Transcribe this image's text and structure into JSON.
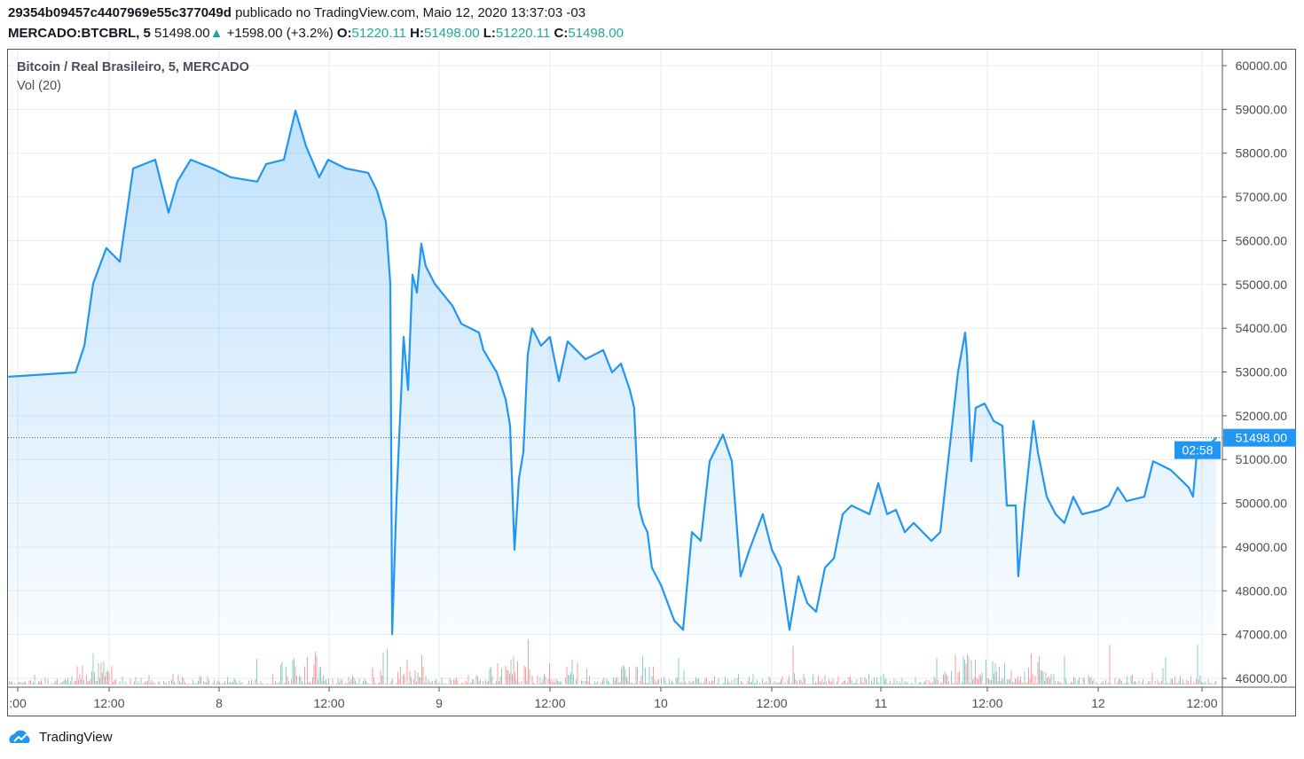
{
  "header": {
    "author": "29354b09457c4407969e55c377049d",
    "published": "publicado no TradingView.com, Maio 12, 2020 13:37:03 -03",
    "symbol": "MERCADO:BTCBRL, 5",
    "last": "51498.00",
    "change": "+1598.00 (+3.2%)",
    "o_label": "O:",
    "o": "51220.11",
    "h_label": "H:",
    "h": "51498.00",
    "l_label": "L:",
    "l": "51220.11",
    "c_label": "C:",
    "c": "51498.00"
  },
  "legend": {
    "title": "Bitcoin / Real Brasileiro, 5, MERCADO",
    "volume": "Vol (20)"
  },
  "footer": {
    "brand": "TradingView"
  },
  "colors": {
    "line": "#2196f3",
    "up": "#26a69a",
    "down": "#ef5350",
    "grid": "#e6edf4"
  },
  "chart_data": {
    "type": "area",
    "title": "Bitcoin / Real Brasileiro, 5, MERCADO",
    "ylim": [
      45800,
      60400
    ],
    "y_ticks": [
      "60000.00",
      "59000.00",
      "58000.00",
      "57000.00",
      "56000.00",
      "55000.00",
      "54000.00",
      "53000.00",
      "52000.00",
      "51000.00",
      "50000.00",
      "49000.00",
      "48000.00",
      "47000.00",
      "46000.00"
    ],
    "x_ticks": [
      ":00",
      "12:00",
      "8",
      "12:00",
      "9",
      "12:00",
      "10",
      "12:00",
      "11",
      "12:00",
      "12",
      "12:00"
    ],
    "last_price_label": "51498.00",
    "countdown_label": "02:58",
    "grid": true,
    "series": [
      {
        "values": [
          [
            "2020-05-07T01:00",
            52890
          ],
          [
            "2020-05-07T08:20",
            52990
          ],
          [
            "2020-05-07T09:18",
            53600
          ],
          [
            "2020-05-07T10:15",
            55020
          ],
          [
            "2020-05-07T11:42",
            55830
          ],
          [
            "2020-05-07T13:10",
            55520
          ],
          [
            "2020-05-07T14:37",
            57650
          ],
          [
            "2020-05-07T17:02",
            57850
          ],
          [
            "2020-05-07T18:29",
            56640
          ],
          [
            "2020-05-07T19:27",
            57350
          ],
          [
            "2020-05-07T20:54",
            57850
          ],
          [
            "2020-05-07T23:19",
            57650
          ],
          [
            "2020-05-08T01:16",
            57450
          ],
          [
            "2020-05-08T04:10",
            57350
          ],
          [
            "2020-05-08T05:08",
            57750
          ],
          [
            "2020-05-08T07:04",
            57850
          ],
          [
            "2020-05-08T08:20",
            58970
          ],
          [
            "2020-05-08T09:29",
            58160
          ],
          [
            "2020-05-08T10:56",
            57450
          ],
          [
            "2020-05-08T11:54",
            57850
          ],
          [
            "2020-05-08T13:50",
            57650
          ],
          [
            "2020-05-08T16:16",
            57550
          ],
          [
            "2020-05-08T17:14",
            57140
          ],
          [
            "2020-05-08T18:12",
            56430
          ],
          [
            "2020-05-08T18:41",
            55020
          ],
          [
            "2020-05-08T18:53",
            47010
          ],
          [
            "2020-05-08T19:22",
            50150
          ],
          [
            "2020-05-08T20:08",
            53800
          ],
          [
            "2020-05-08T20:37",
            52590
          ],
          [
            "2020-05-08T21:06",
            55220
          ],
          [
            "2020-05-08T21:35",
            54810
          ],
          [
            "2020-05-08T22:04",
            55930
          ],
          [
            "2020-05-08T22:33",
            55420
          ],
          [
            "2020-05-08T23:31",
            55020
          ],
          [
            "2020-05-09T01:28",
            54510
          ],
          [
            "2020-05-09T02:26",
            54100
          ],
          [
            "2020-05-09T04:22",
            53900
          ],
          [
            "2020-05-09T04:51",
            53500
          ],
          [
            "2020-05-09T06:18",
            52990
          ],
          [
            "2020-05-09T07:16",
            52380
          ],
          [
            "2020-05-09T07:45",
            51770
          ],
          [
            "2020-05-09T08:14",
            48940
          ],
          [
            "2020-05-09T08:43",
            50560
          ],
          [
            "2020-05-09T09:12",
            51170
          ],
          [
            "2020-05-09T09:41",
            53400
          ],
          [
            "2020-05-09T10:10",
            54000
          ],
          [
            "2020-05-09T11:08",
            53600
          ],
          [
            "2020-05-09T12:06",
            53800
          ],
          [
            "2020-05-09T13:05",
            52790
          ],
          [
            "2020-05-09T14:02",
            53700
          ],
          [
            "2020-05-09T15:59",
            53290
          ],
          [
            "2020-05-09T17:55",
            53500
          ],
          [
            "2020-05-09T18:53",
            52990
          ],
          [
            "2020-05-09T19:51",
            53190
          ],
          [
            "2020-05-09T20:49",
            52590
          ],
          [
            "2020-05-09T21:18",
            52180
          ],
          [
            "2020-05-09T21:47",
            49950
          ],
          [
            "2020-05-09T22:16",
            49550
          ],
          [
            "2020-05-09T22:45",
            49340
          ],
          [
            "2020-05-09T23:14",
            48530
          ],
          [
            "2020-05-10T00:13",
            48130
          ],
          [
            "2020-05-10T01:40",
            47320
          ],
          [
            "2020-05-10T02:38",
            47110
          ],
          [
            "2020-05-10T03:36",
            49340
          ],
          [
            "2020-05-10T04:34",
            49140
          ],
          [
            "2020-05-10T05:32",
            50960
          ],
          [
            "2020-05-10T06:59",
            51570
          ],
          [
            "2020-05-10T07:57",
            50960
          ],
          [
            "2020-05-10T08:55",
            48330
          ],
          [
            "2020-05-10T09:53",
            48940
          ],
          [
            "2020-05-10T11:20",
            49750
          ],
          [
            "2020-05-10T12:19",
            48940
          ],
          [
            "2020-05-10T13:17",
            48530
          ],
          [
            "2020-05-10T14:15",
            47110
          ],
          [
            "2020-05-10T15:13",
            48330
          ],
          [
            "2020-05-10T16:11",
            47720
          ],
          [
            "2020-05-10T17:09",
            47520
          ],
          [
            "2020-05-10T18:07",
            48530
          ],
          [
            "2020-05-10T19:05",
            48740
          ],
          [
            "2020-05-10T20:03",
            49750
          ],
          [
            "2020-05-10T21:01",
            49950
          ],
          [
            "2020-05-10T22:58",
            49750
          ],
          [
            "2020-05-10T23:56",
            50460
          ],
          [
            "2020-05-11T00:54",
            49750
          ],
          [
            "2020-05-11T01:52",
            49850
          ],
          [
            "2020-05-11T02:50",
            49340
          ],
          [
            "2020-05-11T03:48",
            49550
          ],
          [
            "2020-05-11T05:44",
            49140
          ],
          [
            "2020-05-11T06:42",
            49340
          ],
          [
            "2020-05-11T07:40",
            51170
          ],
          [
            "2020-05-11T08:38",
            52990
          ],
          [
            "2020-05-11T09:25",
            53900
          ],
          [
            "2020-05-11T09:37",
            53400
          ],
          [
            "2020-05-11T10:05",
            50960
          ],
          [
            "2020-05-11T10:34",
            52180
          ],
          [
            "2020-05-11T11:32",
            52280
          ],
          [
            "2020-05-11T12:31",
            51880
          ],
          [
            "2020-05-11T13:29",
            51770
          ],
          [
            "2020-05-11T13:58",
            49950
          ],
          [
            "2020-05-11T14:56",
            49950
          ],
          [
            "2020-05-11T15:13",
            48330
          ],
          [
            "2020-05-11T15:54",
            49950
          ],
          [
            "2020-05-11T16:52",
            51880
          ],
          [
            "2020-05-11T17:21",
            51170
          ],
          [
            "2020-05-11T18:19",
            50150
          ],
          [
            "2020-05-11T19:17",
            49750
          ],
          [
            "2020-05-11T20:15",
            49550
          ],
          [
            "2020-05-11T21:13",
            50150
          ],
          [
            "2020-05-11T22:11",
            49750
          ],
          [
            "2020-05-12T00:08",
            49850
          ],
          [
            "2020-05-12T01:06",
            49950
          ],
          [
            "2020-05-12T02:04",
            50360
          ],
          [
            "2020-05-12T03:02",
            50050
          ],
          [
            "2020-05-12T04:58",
            50150
          ],
          [
            "2020-05-12T05:56",
            50960
          ],
          [
            "2020-05-12T07:52",
            50760
          ],
          [
            "2020-05-12T09:49",
            50360
          ],
          [
            "2020-05-12T10:17",
            50150
          ],
          [
            "2020-05-12T10:47",
            51370
          ],
          [
            "2020-05-12T11:44",
            51270
          ],
          [
            "2020-05-12T12:49",
            51498
          ]
        ]
      }
    ]
  }
}
